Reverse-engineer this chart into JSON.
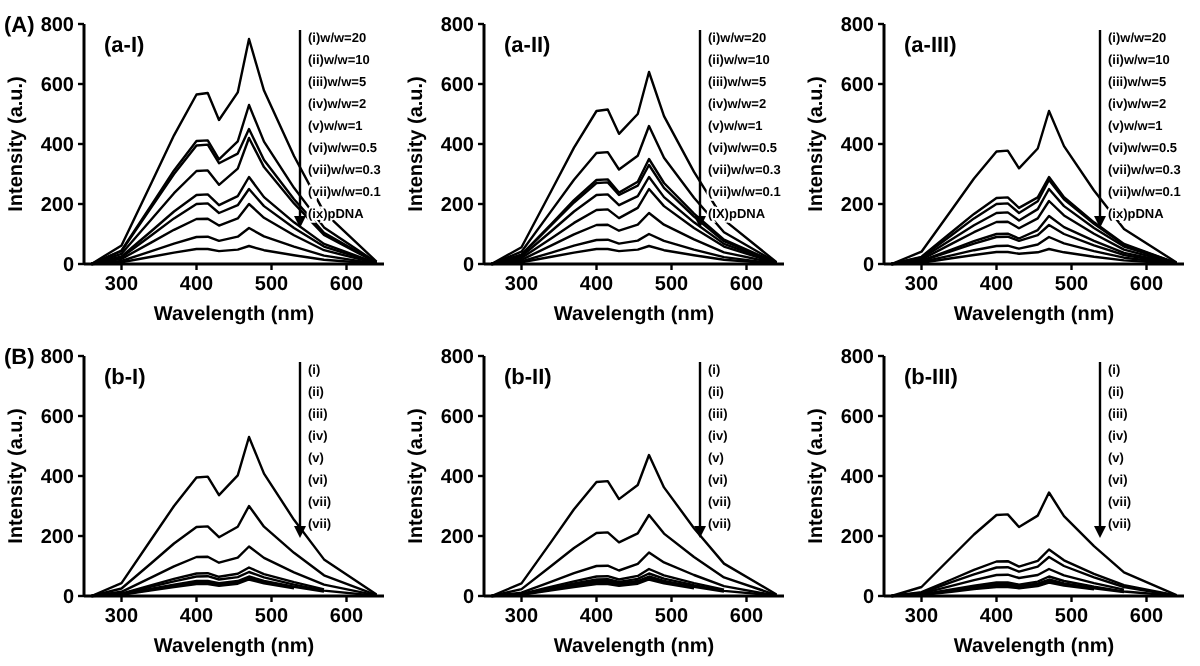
{
  "chart_data": [
    {
      "type": "line",
      "title": "(A)",
      "xlabel": "Wavelength (nm)",
      "ylabel": "Intensity (a.u.)",
      "annotations": [
        "(a-I)",
        "(i)w/w=20",
        "(ii)w/w=10",
        "(iii)w/w=5",
        "(iv)w/w=2",
        "(v)w/w=1",
        "(vi)w/w=0.5",
        "(vii)w/w=0.3",
        "(vii)w/w=0.1",
        "(ix)pDNA"
      ],
      "xlim": [
        250,
        650
      ],
      "ylim": [
        0,
        800
      ],
      "xticks": [
        300,
        400,
        500,
        600
      ],
      "yticks": [
        0,
        200,
        400,
        600,
        800
      ],
      "x": [
        260,
        300,
        340,
        370,
        400,
        415,
        430,
        455,
        470,
        490,
        530,
        570,
        640
      ],
      "series": [
        {
          "color": "#000000",
          "values": [
            0,
            62,
            271,
            429,
            565,
            570,
            480,
            572,
            750,
            578,
            360,
            173,
            8
          ]
        },
        {
          "color": "#000000",
          "values": [
            0,
            45,
            197,
            312,
            410,
            412,
            349,
            409,
            530,
            408,
            254,
            122,
            5
          ]
        },
        {
          "color": "#000000",
          "values": [
            0,
            43,
            190,
            300,
            395,
            398,
            336,
            368,
            450,
            347,
            216,
            104,
            5
          ]
        },
        {
          "color": "#000000",
          "values": [
            0,
            34,
            149,
            236,
            310,
            312,
            264,
            318,
            420,
            323,
            202,
            97,
            4
          ]
        },
        {
          "color": "#000000",
          "values": [
            0,
            25,
            110,
            175,
            230,
            232,
            196,
            226,
            290,
            223,
            139,
            67,
            3
          ]
        },
        {
          "color": "#000000",
          "values": [
            0,
            22,
            96,
            152,
            200,
            202,
            170,
            196,
            250,
            193,
            120,
            58,
            3
          ]
        },
        {
          "color": "#000000",
          "values": [
            0,
            17,
            72,
            114,
            150,
            151,
            128,
            152,
            200,
            154,
            96,
            46,
            2
          ]
        },
        {
          "color": "#000000",
          "values": [
            0,
            10,
            43,
            68,
            90,
            91,
            77,
            91,
            120,
            92,
            58,
            28,
            1
          ]
        },
        {
          "color": "#000000",
          "values": [
            0,
            6,
            24,
            38,
            50,
            50,
            43,
            48,
            60,
            46,
            29,
            14,
            1
          ]
        }
      ]
    },
    {
      "type": "line",
      "xlabel": "Wavelength (nm)",
      "ylabel": "Intensity (a.u.)",
      "annotations": [
        "(a-II)",
        "(i)w/w=20",
        "(ii)w/w=10",
        "(iii)w/w=5",
        "(iv)w/w=2",
        "(v)w/w=1",
        "(vi)w/w=0.5",
        "(vii)w/w=0.3",
        "(vii)w/w=0.1",
        "(IX)pDNA"
      ],
      "xlim": [
        250,
        650
      ],
      "ylim": [
        0,
        800
      ],
      "xticks": [
        300,
        400,
        500,
        600
      ],
      "yticks": [
        0,
        200,
        400,
        600,
        800
      ],
      "x": [
        260,
        300,
        340,
        370,
        400,
        415,
        430,
        455,
        470,
        490,
        530,
        570,
        640
      ],
      "series": [
        {
          "color": "#000000",
          "values": [
            0,
            56,
            245,
            388,
            510,
            515,
            434,
            500,
            640,
            493,
            307,
            147,
            6
          ]
        },
        {
          "color": "#000000",
          "values": [
            0,
            41,
            178,
            281,
            370,
            373,
            315,
            361,
            460,
            354,
            221,
            106,
            5
          ]
        },
        {
          "color": "#000000",
          "values": [
            0,
            31,
            134,
            213,
            280,
            282,
            238,
            274,
            350,
            270,
            168,
            81,
            4
          ]
        },
        {
          "color": "#000000",
          "values": [
            0,
            30,
            130,
            205,
            270,
            272,
            230,
            261,
            330,
            254,
            158,
            76,
            3
          ]
        },
        {
          "color": "#000000",
          "values": [
            0,
            25,
            110,
            175,
            230,
            232,
            196,
            226,
            290,
            223,
            139,
            67,
            3
          ]
        },
        {
          "color": "#000000",
          "values": [
            0,
            20,
            86,
            137,
            180,
            182,
            153,
            187,
            250,
            193,
            120,
            58,
            3
          ]
        },
        {
          "color": "#000000",
          "values": [
            0,
            14,
            62,
            99,
            130,
            131,
            111,
            131,
            170,
            131,
            82,
            39,
            2
          ]
        },
        {
          "color": "#000000",
          "values": [
            0,
            9,
            38,
            61,
            80,
            81,
            68,
            78,
            100,
            77,
            48,
            23,
            1
          ]
        },
        {
          "color": "#000000",
          "values": [
            0,
            6,
            24,
            38,
            50,
            50,
            43,
            48,
            60,
            46,
            29,
            14,
            1
          ]
        }
      ]
    },
    {
      "type": "line",
      "xlabel": "Wavelength (nm)",
      "ylabel": "Intensity (a.u.)",
      "annotations": [
        "(a-III)",
        "(i)w/w=20",
        "(ii)w/w=10",
        "(iii)w/w=5",
        "(iv)w/w=2",
        "(v)w/w=1",
        "(vi)w/w=0.5",
        "(vii)w/w=0.3",
        "(vii)w/w=0.1",
        "(ix)pDNA"
      ],
      "xlim": [
        250,
        650
      ],
      "ylim": [
        0,
        800
      ],
      "xticks": [
        300,
        400,
        500,
        600
      ],
      "yticks": [
        0,
        200,
        400,
        600,
        800
      ],
      "x": [
        260,
        300,
        340,
        370,
        400,
        415,
        430,
        455,
        470,
        490,
        530,
        570,
        640
      ],
      "series": [
        {
          "color": "#000000",
          "values": [
            0,
            41,
            180,
            285,
            375,
            378,
            319,
            385,
            510,
            393,
            245,
            117,
            5
          ]
        },
        {
          "color": "#000000",
          "values": [
            0,
            24,
            106,
            167,
            220,
            222,
            187,
            222,
            290,
            223,
            139,
            67,
            3
          ]
        },
        {
          "color": "#000000",
          "values": [
            0,
            22,
            96,
            152,
            200,
            202,
            170,
            209,
            280,
            216,
            134,
            64,
            3
          ]
        },
        {
          "color": "#000000",
          "values": [
            0,
            19,
            82,
            129,
            170,
            172,
            145,
            183,
            250,
            193,
            120,
            58,
            3
          ]
        },
        {
          "color": "#000000",
          "values": [
            0,
            15,
            67,
            106,
            140,
            141,
            119,
            152,
            210,
            162,
            101,
            48,
            2
          ]
        },
        {
          "color": "#000000",
          "values": [
            0,
            11,
            48,
            76,
            100,
            101,
            85,
            113,
            160,
            123,
            77,
            37,
            2
          ]
        },
        {
          "color": "#000000",
          "values": [
            0,
            10,
            43,
            68,
            90,
            91,
            77,
            96,
            130,
            100,
            62,
            30,
            1
          ]
        },
        {
          "color": "#000000",
          "values": [
            0,
            7,
            29,
            46,
            60,
            61,
            51,
            65,
            90,
            69,
            43,
            21,
            1
          ]
        },
        {
          "color": "#000000",
          "values": [
            0,
            4,
            19,
            30,
            40,
            40,
            34,
            39,
            50,
            39,
            24,
            12,
            1
          ]
        }
      ]
    },
    {
      "type": "line",
      "title": "(B)",
      "xlabel": "Wavelength (nm)",
      "ylabel": "Intensity (a.u.)",
      "annotations": [
        "(b-I)",
        "(i)",
        "(ii)",
        "(iii)",
        "(iv)",
        "(v)",
        "(vi)",
        "(vii)",
        "(vii)"
      ],
      "xlim": [
        250,
        650
      ],
      "ylim": [
        0,
        800
      ],
      "xticks": [
        300,
        400,
        500,
        600
      ],
      "yticks": [
        0,
        200,
        400,
        600,
        800
      ],
      "x": [
        260,
        300,
        340,
        370,
        400,
        415,
        430,
        455,
        470,
        490,
        530,
        570,
        640
      ],
      "series": [
        {
          "color": "#000000",
          "values": [
            0,
            43,
            190,
            300,
            395,
            398,
            336,
            402,
            530,
            408,
            254,
            122,
            5
          ]
        },
        {
          "color": "#000000",
          "values": [
            0,
            25,
            110,
            175,
            230,
            232,
            196,
            231,
            300,
            231,
            144,
            69,
            3
          ]
        },
        {
          "color": "#000000",
          "values": [
            0,
            14,
            62,
            99,
            130,
            131,
            111,
            128,
            165,
            127,
            79,
            38,
            2
          ]
        },
        {
          "color": "#000000",
          "values": [
            0,
            8,
            36,
            57,
            75,
            76,
            64,
            74,
            95,
            73,
            46,
            22,
            null
          ]
        },
        {
          "color": "#000000",
          "values": [
            null,
            7,
            31,
            49,
            65,
            66,
            55,
            63,
            80,
            62,
            38,
            18,
            1
          ]
        },
        {
          "color": "#000000",
          "values": [
            null,
            6,
            24,
            38,
            50,
            50,
            43,
            50,
            65,
            50,
            31,
            15,
            null
          ]
        },
        {
          "color": "#000000",
          "values": [
            0,
            5,
            22,
            34,
            45,
            45,
            38,
            46,
            60,
            46,
            29,
            null,
            null
          ]
        },
        {
          "color": "#000000",
          "values": [
            null,
            4,
            19,
            30,
            40,
            40,
            34,
            41,
            55,
            42,
            26,
            null,
            null
          ]
        }
      ]
    },
    {
      "type": "line",
      "xlabel": "Wavelength (nm)",
      "ylabel": "Intensity (a.u.)",
      "annotations": [
        "(b-II)",
        "(i)",
        "(ii)",
        "(iii)",
        "(iv)",
        "(v)",
        "(vi)",
        "(vii)",
        "(vii)"
      ],
      "xlim": [
        250,
        650
      ],
      "ylim": [
        0,
        800
      ],
      "xticks": [
        300,
        400,
        500,
        600
      ],
      "yticks": [
        0,
        200,
        400,
        600,
        800
      ],
      "x": [
        260,
        300,
        340,
        370,
        400,
        415,
        430,
        455,
        470,
        490,
        530,
        570,
        640
      ],
      "series": [
        {
          "color": "#000000",
          "values": [
            0,
            42,
            182,
            289,
            380,
            383,
            323,
            370,
            470,
            362,
            226,
            108,
            5
          ]
        },
        {
          "color": "#000000",
          "values": [
            0,
            23,
            101,
            160,
            210,
            212,
            179,
            209,
            270,
            208,
            130,
            62,
            3
          ]
        },
        {
          "color": "#000000",
          "values": [
            0,
            11,
            48,
            76,
            100,
            101,
            85,
            107,
            145,
            112,
            70,
            33,
            1
          ]
        },
        {
          "color": "#000000",
          "values": [
            0,
            7,
            31,
            49,
            65,
            66,
            55,
            67,
            90,
            69,
            43,
            21,
            null
          ]
        },
        {
          "color": "#000000",
          "values": [
            null,
            6,
            26,
            42,
            55,
            56,
            47,
            57,
            75,
            58,
            36,
            17,
            1
          ]
        },
        {
          "color": "#000000",
          "values": [
            null,
            6,
            24,
            38,
            50,
            50,
            43,
            50,
            65,
            50,
            31,
            15,
            null
          ]
        },
        {
          "color": "#000000",
          "values": [
            0,
            5,
            22,
            34,
            45,
            45,
            38,
            46,
            60,
            46,
            29,
            null,
            null
          ]
        },
        {
          "color": "#000000",
          "values": [
            null,
            4,
            19,
            30,
            40,
            40,
            34,
            41,
            55,
            42,
            26,
            null,
            null
          ]
        }
      ]
    },
    {
      "type": "line",
      "xlabel": "Wavelength (nm)",
      "ylabel": "Intensity (a.u.)",
      "annotations": [
        "(b-III)",
        "(i)",
        "(ii)",
        "(iii)",
        "(iv)",
        "(v)",
        "(vi)",
        "(vii)",
        "(vii)"
      ],
      "xlim": [
        250,
        650
      ],
      "ylim": [
        0,
        800
      ],
      "xticks": [
        300,
        400,
        500,
        600
      ],
      "yticks": [
        0,
        200,
        400,
        600,
        800
      ],
      "x": [
        260,
        300,
        340,
        370,
        400,
        415,
        430,
        455,
        470,
        490,
        530,
        570,
        640
      ],
      "series": [
        {
          "color": "#000000",
          "values": [
            0,
            30,
            130,
            205,
            270,
            272,
            230,
            268,
            345,
            266,
            166,
            79,
            3
          ]
        },
        {
          "color": "#000000",
          "values": [
            0,
            13,
            55,
            87,
            115,
            116,
            98,
            117,
            155,
            119,
            74,
            36,
            2
          ]
        },
        {
          "color": "#000000",
          "values": [
            0,
            10,
            46,
            72,
            95,
            96,
            81,
            98,
            130,
            100,
            62,
            30,
            1
          ]
        },
        {
          "color": "#000000",
          "values": [
            0,
            8,
            34,
            53,
            70,
            71,
            60,
            70,
            90,
            69,
            43,
            21,
            null
          ]
        },
        {
          "color": "#000000",
          "values": [
            null,
            5,
            22,
            34,
            45,
            45,
            38,
            48,
            65,
            50,
            31,
            15,
            1
          ]
        },
        {
          "color": "#000000",
          "values": [
            null,
            4,
            19,
            30,
            40,
            40,
            34,
            41,
            55,
            42,
            26,
            13,
            null
          ]
        },
        {
          "color": "#000000",
          "values": [
            0,
            4,
            17,
            27,
            35,
            35,
            30,
            37,
            50,
            39,
            24,
            null,
            null
          ]
        },
        {
          "color": "#000000",
          "values": [
            null,
            3,
            14,
            23,
            30,
            30,
            26,
            33,
            45,
            35,
            22,
            null,
            null
          ]
        }
      ]
    }
  ]
}
